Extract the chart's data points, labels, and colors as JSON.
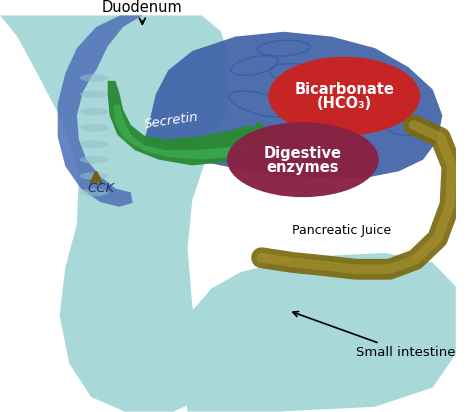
{
  "bg_color": "#ffffff",
  "light_teal": "#a8d8d8",
  "dark_blue": "#4466aa",
  "medium_blue": "#5577bb",
  "green_body": "#2a8a35",
  "green_light": "#44bb55",
  "red_ellipse": "#cc2222",
  "dark_red_ellipse": "#882244",
  "olive_tube": "#7a6a10",
  "olive_tube_light": "#aa9530",
  "duodenum_label": "Duodenum",
  "secretin_label": "Secretin",
  "cck_label": "CCK",
  "bicarbonate_line1": "Bicarbonate",
  "bicarbonate_line2": "(HCO₃)",
  "digestive_line1": "Digestive",
  "digestive_line2": "enzymes",
  "pancreatic_juice_label": "Pancreatic Juice",
  "small_intestine_label": "Small intestine",
  "white": "#ffffff",
  "black": "#111111",
  "brain_wrinkle": "#3355aa"
}
